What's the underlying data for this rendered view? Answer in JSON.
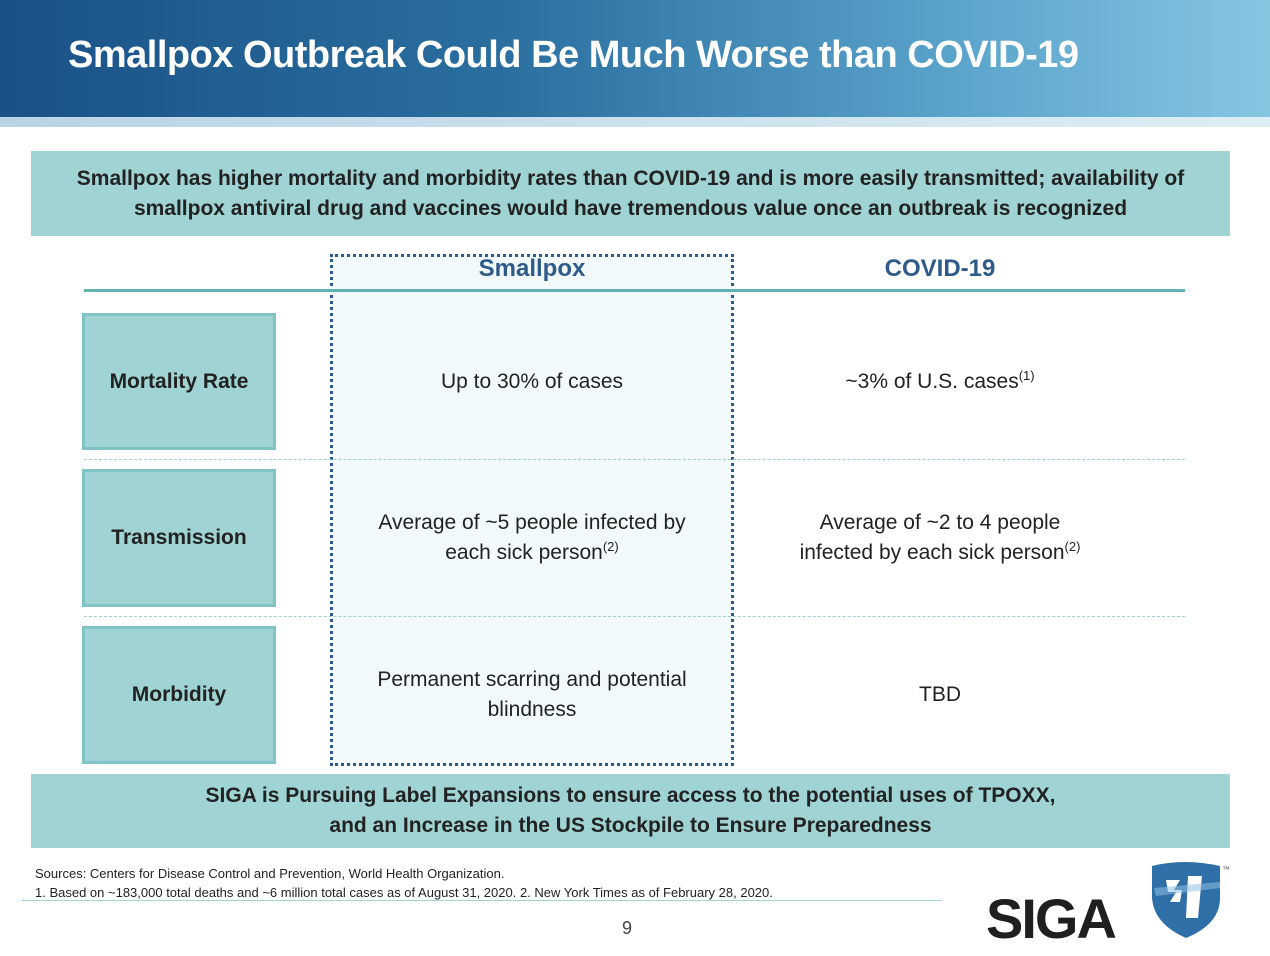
{
  "header": {
    "title": "Smallpox Outbreak Could Be Much Worse than COVID-19"
  },
  "top_banner": {
    "line1": "Smallpox has higher mortality and morbidity rates than COVID-19 and is more easily transmitted; availability of",
    "line2": "smallpox antiviral drug and vaccines would have tremendous value once an outbreak is recognized"
  },
  "table": {
    "columns": {
      "smallpox": "Smallpox",
      "covid": "COVID-19"
    },
    "rows": [
      {
        "label": "Mortality Rate",
        "smallpox": {
          "line1": "Up to 30% of cases",
          "line2": "",
          "sup": ""
        },
        "covid": {
          "line1": "~3% of U.S. cases",
          "line2": "",
          "sup": "(1)"
        }
      },
      {
        "label": "Transmission",
        "smallpox": {
          "line1": "Average of ~5 people infected by",
          "line2": "each sick person",
          "sup": "(2)"
        },
        "covid": {
          "line1": "Average of ~2 to 4 people",
          "line2": "infected by each sick person",
          "sup": "(2)"
        }
      },
      {
        "label": "Morbidity",
        "smallpox": {
          "line1": "Permanent scarring and potential",
          "line2": "blindness",
          "sup": ""
        },
        "covid": {
          "line1": "TBD",
          "line2": "",
          "sup": ""
        }
      }
    ]
  },
  "bottom_banner": {
    "line1": "SIGA is Pursuing Label Expansions to ensure access to the potential uses of TPOXX,",
    "line2": "and an Increase in the US Stockpile to Ensure Preparedness"
  },
  "footer": {
    "sources": "Sources: Centers for Disease Control and Prevention, World Health Organization.",
    "notes": "1. Based on ~183,000 total deaths and ~6 million total cases as of August 31, 2020. 2. New York Times as of February 28, 2020.",
    "page_number": "9"
  },
  "logo": {
    "text": "SIGA",
    "tm": "™",
    "text_color": "#1f1f1f",
    "shield_color": "#2f6fa8"
  },
  "colors": {
    "header_dark": "#1a5187",
    "header_light": "#86c6e1",
    "banner": "#9fd3d4",
    "column_heading": "#2f5b8a",
    "rule": "#5fb3b1"
  }
}
